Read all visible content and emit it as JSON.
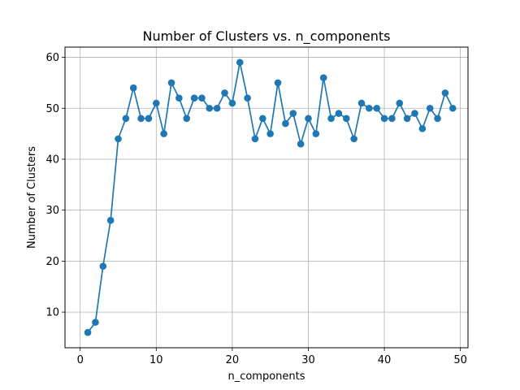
{
  "chart_data": {
    "type": "line",
    "title": "Number of Clusters vs. n_components",
    "xlabel": "n_components",
    "ylabel": "Number of Clusters",
    "xlim": [
      -2,
      51
    ],
    "ylim": [
      3,
      62
    ],
    "xticks": [
      0,
      10,
      20,
      30,
      40,
      50
    ],
    "yticks": [
      10,
      20,
      30,
      40,
      50,
      60
    ],
    "grid": true,
    "marker": "circle",
    "series": [
      {
        "color": "#1f77b4",
        "x": [
          1,
          2,
          3,
          4,
          5,
          6,
          7,
          8,
          9,
          10,
          11,
          12,
          13,
          14,
          15,
          16,
          17,
          18,
          19,
          20,
          21,
          22,
          23,
          24,
          25,
          26,
          27,
          28,
          29,
          30,
          31,
          32,
          33,
          34,
          35,
          36,
          37,
          38,
          39,
          40,
          41,
          42,
          43,
          44,
          45,
          46,
          47,
          48,
          49
        ],
        "y": [
          6,
          8,
          19,
          28,
          44,
          48,
          54,
          48,
          48,
          51,
          45,
          55,
          52,
          48,
          52,
          52,
          50,
          50,
          53,
          51,
          59,
          52,
          44,
          48,
          45,
          55,
          47,
          49,
          43,
          48,
          45,
          56,
          48,
          49,
          48,
          44,
          51,
          50,
          50,
          48,
          48,
          51,
          48,
          49,
          46,
          50,
          48,
          53,
          50
        ]
      }
    ]
  }
}
